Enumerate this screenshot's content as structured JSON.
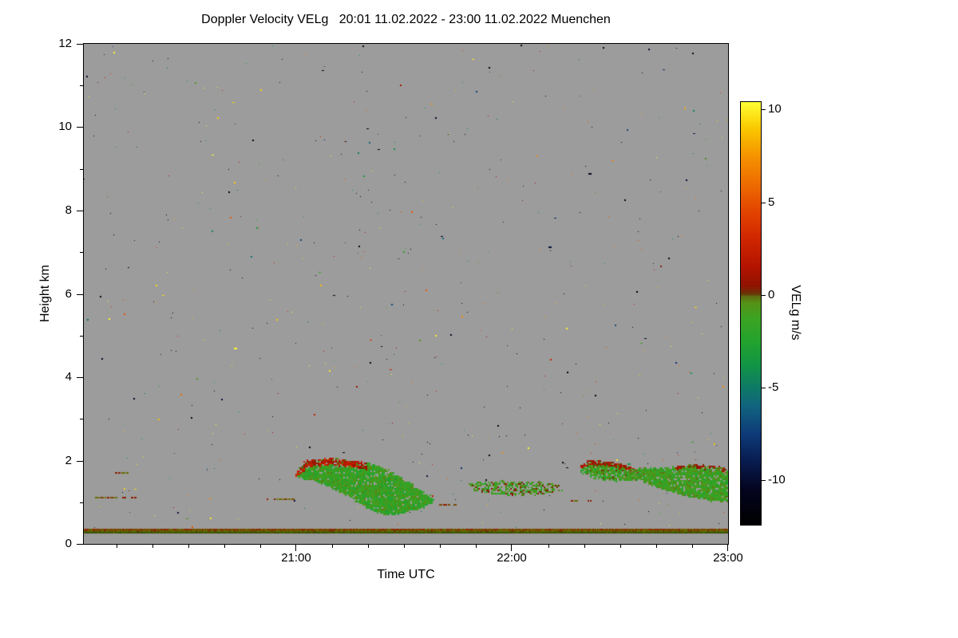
{
  "chart_data": {
    "type": "heatmap",
    "title": "Doppler Velocity VELg   20:01 11.02.2022 - 23:00 11.02.2022 Muenchen",
    "xlabel": "Time UTC",
    "ylabel": "Height km",
    "x_range_hours": [
      20.0167,
      23.0
    ],
    "x_ticks": [
      {
        "hour": 21,
        "label": "21:00"
      },
      {
        "hour": 22,
        "label": "22:00"
      },
      {
        "hour": 23,
        "label": "23:00"
      }
    ],
    "x_minor_tick_minutes": 10,
    "y_range_km": [
      0,
      12
    ],
    "y_ticks": [
      {
        "km": 0,
        "label": "0"
      },
      {
        "km": 2,
        "label": "2"
      },
      {
        "km": 4,
        "label": "4"
      },
      {
        "km": 6,
        "label": "6"
      },
      {
        "km": 8,
        "label": "8"
      },
      {
        "km": 10,
        "label": "10"
      },
      {
        "km": 12,
        "label": "12"
      }
    ],
    "y_minor_ticks_km": [
      1,
      3,
      5,
      7,
      9,
      11
    ],
    "background_color": "#9c9c9c",
    "colorbar": {
      "label": "VELg m/s",
      "vmin": -12.4,
      "vmax": 10.4,
      "ticks": [
        {
          "v": 10,
          "label": "10"
        },
        {
          "v": 5,
          "label": "5"
        },
        {
          "v": 0,
          "label": "0"
        },
        {
          "v": -5,
          "label": "-5"
        },
        {
          "v": -10,
          "label": "-10"
        }
      ],
      "stops": [
        [
          -12.4,
          "#000000"
        ],
        [
          -10.5,
          "#04041f"
        ],
        [
          -9.0,
          "#081b4e"
        ],
        [
          -7.5,
          "#0d3a78"
        ],
        [
          -6.0,
          "#11637f"
        ],
        [
          -5.0,
          "#0e7a66"
        ],
        [
          -3.8,
          "#129447"
        ],
        [
          -2.5,
          "#23a32d"
        ],
        [
          -1.2,
          "#3da322"
        ],
        [
          -0.4,
          "#569117"
        ],
        [
          -0.05,
          "#5e6b10"
        ],
        [
          0.05,
          "#663808"
        ],
        [
          0.5,
          "#8f1300"
        ],
        [
          1.5,
          "#b31300"
        ],
        [
          3.0,
          "#cf2600"
        ],
        [
          4.5,
          "#e24400"
        ],
        [
          6.0,
          "#ee6c00"
        ],
        [
          7.5,
          "#f59300"
        ],
        [
          9.0,
          "#fac800"
        ],
        [
          10.4,
          "#ffff33"
        ]
      ]
    },
    "noise_speckles": {
      "count": 560,
      "seed": 98761
    },
    "ground_clutter": {
      "h_top_km": 0.36,
      "h_bottom_km": 0.245,
      "row_colors": [
        [
          "#8a2500",
          "#8a2500",
          "#6b6b00",
          "#7a5500"
        ],
        [
          "#5e6b00",
          "#6b3500",
          "#5e6b00"
        ],
        [
          "#39520a",
          "#4a6000",
          "#39520a"
        ]
      ]
    },
    "dash_colors": [
      "#6b6b00",
      "#7a4a00",
      "#8a2000"
    ],
    "dashes": [
      {
        "t0": 20.07,
        "t1": 20.31,
        "h_km": 1.12
      },
      {
        "t0": 20.16,
        "t1": 20.24,
        "h_km": 1.72
      },
      {
        "t0": 20.85,
        "t1": 21.02,
        "h_km": 1.1
      },
      {
        "t0": 21.66,
        "t1": 21.74,
        "h_km": 0.95
      },
      {
        "t0": 22.27,
        "t1": 22.4,
        "h_km": 1.05
      }
    ],
    "features": [
      {
        "name": "cloud-band-1",
        "polygon": [
          [
            21.0,
            1.72
          ],
          [
            21.05,
            2.0
          ],
          [
            21.15,
            2.06
          ],
          [
            21.28,
            1.98
          ],
          [
            21.38,
            1.88
          ],
          [
            21.48,
            1.62
          ],
          [
            21.56,
            1.35
          ],
          [
            21.63,
            1.1
          ],
          [
            21.63,
            0.95
          ],
          [
            21.55,
            0.8
          ],
          [
            21.46,
            0.7
          ],
          [
            21.38,
            0.73
          ],
          [
            21.32,
            0.88
          ],
          [
            21.25,
            1.12
          ],
          [
            21.16,
            1.35
          ],
          [
            21.08,
            1.52
          ],
          [
            21.0,
            1.6
          ]
        ],
        "v_base": -1.5,
        "v_var": 1.3,
        "density": 0.93,
        "top_band": {
          "t0": 21.0,
          "t1": 21.33,
          "depth_km": 0.16,
          "v": 1.3,
          "v_var": 1.8
        }
      },
      {
        "name": "cloud-patch-2",
        "polygon": [
          [
            21.8,
            1.45
          ],
          [
            21.92,
            1.52
          ],
          [
            22.02,
            1.48
          ],
          [
            22.12,
            1.5
          ],
          [
            22.21,
            1.42
          ],
          [
            22.23,
            1.28
          ],
          [
            22.12,
            1.18
          ],
          [
            22.0,
            1.15
          ],
          [
            21.9,
            1.2
          ],
          [
            21.83,
            1.28
          ]
        ],
        "v_base": -0.8,
        "v_var": 1.4,
        "density": 0.6
      },
      {
        "name": "cloud-band-3a",
        "polygon": [
          [
            22.31,
            1.88
          ],
          [
            22.36,
            2.0
          ],
          [
            22.45,
            1.97
          ],
          [
            22.55,
            1.85
          ],
          [
            22.63,
            1.68
          ],
          [
            22.58,
            1.52
          ],
          [
            22.48,
            1.5
          ],
          [
            22.38,
            1.58
          ],
          [
            22.32,
            1.72
          ]
        ],
        "v_base": -1.2,
        "v_var": 1.3,
        "density": 0.9,
        "top_band": {
          "t0": 22.31,
          "t1": 22.63,
          "depth_km": 0.1,
          "v": 0.9,
          "v_var": 1.4
        }
      },
      {
        "name": "cloud-band-3b",
        "polygon": [
          [
            22.55,
            1.8
          ],
          [
            22.7,
            1.82
          ],
          [
            22.82,
            1.9
          ],
          [
            22.94,
            1.87
          ],
          [
            23.0,
            1.8
          ],
          [
            23.0,
            1.0
          ],
          [
            22.92,
            1.02
          ],
          [
            22.82,
            1.12
          ],
          [
            22.72,
            1.28
          ],
          [
            22.63,
            1.42
          ],
          [
            22.57,
            1.6
          ]
        ],
        "v_base": -1.3,
        "v_var": 1.2,
        "density": 0.92,
        "top_band": {
          "t0": 22.75,
          "t1": 23.0,
          "depth_km": 0.08,
          "v": 0.5,
          "v_var": 1.2
        }
      }
    ]
  }
}
